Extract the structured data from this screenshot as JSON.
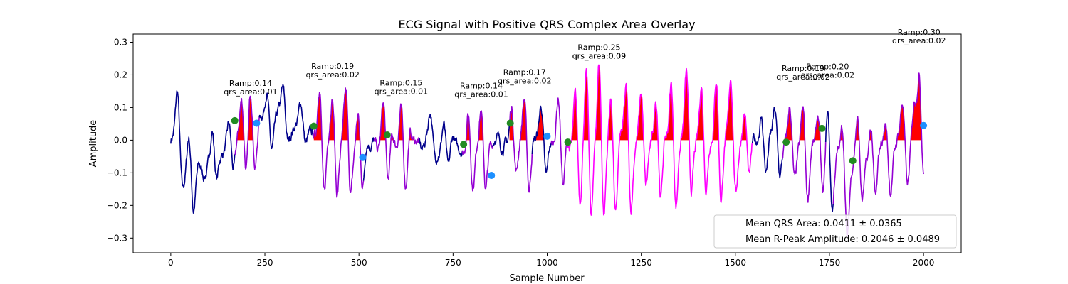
{
  "chart_data": {
    "type": "line",
    "title": "ECG Signal with Positive QRS Complex Area Overlay",
    "xlabel": "Sample Number",
    "ylabel": "Amplitude",
    "xlim": [
      -100,
      2100
    ],
    "ylim": [
      -0.345,
      0.325
    ],
    "xticks": [
      0,
      250,
      500,
      750,
      1000,
      1250,
      1500,
      1750,
      2000
    ],
    "yticks": [
      -0.3,
      -0.2,
      -0.1,
      0.0,
      0.1,
      0.2,
      0.3
    ],
    "xtick_labels": [
      "0",
      "250",
      "500",
      "750",
      "1000",
      "1250",
      "1500",
      "1750",
      "2000"
    ],
    "ytick_labels": [
      "−0.3",
      "−0.2",
      "−0.1",
      "0.0",
      "0.1",
      "0.2",
      "0.3"
    ],
    "grid": false,
    "colors": {
      "normal": "#00008b",
      "medium": "#9400d3",
      "high": "#ff00ff",
      "area_fill": "#ff0000",
      "onset_marker": "#228b22",
      "offset_marker": "#1e90ff"
    },
    "segments": [
      {
        "range": [
          0,
          170
        ],
        "color": "normal"
      },
      {
        "range": [
          170,
          235
        ],
        "color": "medium"
      },
      {
        "range": [
          235,
          378
        ],
        "color": "normal"
      },
      {
        "range": [
          378,
          512
        ],
        "color": "medium"
      },
      {
        "range": [
          512,
          540
        ],
        "color": "normal"
      },
      {
        "range": [
          540,
          660
        ],
        "color": "medium"
      },
      {
        "range": [
          660,
          775
        ],
        "color": "normal"
      },
      {
        "range": [
          775,
          855
        ],
        "color": "medium"
      },
      {
        "range": [
          855,
          900
        ],
        "color": "normal"
      },
      {
        "range": [
          900,
          960
        ],
        "color": "medium"
      },
      {
        "range": [
          960,
          1010
        ],
        "color": "normal"
      },
      {
        "range": [
          1010,
          1055
        ],
        "color": "medium"
      },
      {
        "range": [
          1055,
          1545
        ],
        "color": "high"
      },
      {
        "range": [
          1545,
          1625
        ],
        "color": "normal"
      },
      {
        "range": [
          1625,
          1740
        ],
        "color": "medium"
      },
      {
        "range": [
          1740,
          1760
        ],
        "color": "normal"
      },
      {
        "range": [
          1760,
          2000
        ],
        "color": "medium"
      }
    ],
    "beats": [
      {
        "x": 18,
        "a": 0.18,
        "w": 5,
        "s": 0.1
      },
      {
        "x": 48,
        "a": 0.12,
        "w": 5,
        "s": 0.1
      },
      {
        "x": 110,
        "a": 0.12,
        "w": 5,
        "s": 0.09
      },
      {
        "x": 155,
        "a": 0.1,
        "w": 5,
        "s": 0.09
      },
      {
        "x": 188,
        "a": 0.09,
        "w": 5,
        "s": 0.12
      },
      {
        "x": 212,
        "a": 0.13,
        "w": 5,
        "s": 0.12
      },
      {
        "x": 255,
        "a": 0.1,
        "w": 5,
        "s": 0.08
      },
      {
        "x": 298,
        "a": 0.08,
        "w": 5,
        "s": 0.08
      },
      {
        "x": 345,
        "a": 0.07,
        "w": 5,
        "s": 0.07
      },
      {
        "x": 395,
        "a": 0.17,
        "w": 5,
        "s": 0.2
      },
      {
        "x": 430,
        "a": 0.15,
        "w": 5,
        "s": 0.15
      },
      {
        "x": 465,
        "a": 0.15,
        "w": 5,
        "s": 0.15
      },
      {
        "x": 498,
        "a": 0.12,
        "w": 5,
        "s": 0.12
      },
      {
        "x": 565,
        "a": 0.11,
        "w": 5,
        "s": 0.14
      },
      {
        "x": 612,
        "a": 0.11,
        "w": 5,
        "s": 0.14
      },
      {
        "x": 690,
        "a": 0.09,
        "w": 5,
        "s": 0.07
      },
      {
        "x": 725,
        "a": 0.07,
        "w": 5,
        "s": 0.07
      },
      {
        "x": 790,
        "a": 0.12,
        "w": 5,
        "s": 0.13
      },
      {
        "x": 825,
        "a": 0.13,
        "w": 5,
        "s": 0.12
      },
      {
        "x": 905,
        "a": 0.11,
        "w": 5,
        "s": 0.12
      },
      {
        "x": 940,
        "a": 0.14,
        "w": 5,
        "s": 0.14
      },
      {
        "x": 985,
        "a": 0.09,
        "w": 5,
        "s": 0.1
      },
      {
        "x": 1030,
        "a": 0.11,
        "w": 5,
        "s": 0.14
      },
      {
        "x": 1075,
        "a": 0.13,
        "w": 5,
        "s": 0.2
      },
      {
        "x": 1105,
        "a": 0.21,
        "w": 5,
        "s": 0.22
      },
      {
        "x": 1138,
        "a": 0.24,
        "w": 5,
        "s": 0.25
      },
      {
        "x": 1170,
        "a": 0.14,
        "w": 5,
        "s": 0.22
      },
      {
        "x": 1210,
        "a": 0.15,
        "w": 5,
        "s": 0.2
      },
      {
        "x": 1250,
        "a": 0.15,
        "w": 5,
        "s": 0.18
      },
      {
        "x": 1290,
        "a": 0.14,
        "w": 5,
        "s": 0.18
      },
      {
        "x": 1330,
        "a": 0.17,
        "w": 5,
        "s": 0.18
      },
      {
        "x": 1370,
        "a": 0.2,
        "w": 5,
        "s": 0.17
      },
      {
        "x": 1410,
        "a": 0.19,
        "w": 5,
        "s": 0.18
      },
      {
        "x": 1450,
        "a": 0.2,
        "w": 5,
        "s": 0.17
      },
      {
        "x": 1488,
        "a": 0.18,
        "w": 5,
        "s": 0.16
      },
      {
        "x": 1525,
        "a": 0.1,
        "w": 5,
        "s": 0.14
      },
      {
        "x": 1570,
        "a": 0.09,
        "w": 5,
        "s": 0.1
      },
      {
        "x": 1605,
        "a": 0.08,
        "w": 5,
        "s": 0.09
      },
      {
        "x": 1645,
        "a": 0.12,
        "w": 5,
        "s": 0.14
      },
      {
        "x": 1680,
        "a": 0.13,
        "w": 5,
        "s": 0.14
      },
      {
        "x": 1720,
        "a": 0.11,
        "w": 5,
        "s": 0.12
      },
      {
        "x": 1745,
        "a": 0.16,
        "w": 5,
        "s": 0.16
      },
      {
        "x": 1785,
        "a": 0.13,
        "w": 5,
        "s": 0.22
      },
      {
        "x": 1825,
        "a": 0.12,
        "w": 5,
        "s": 0.13
      },
      {
        "x": 1860,
        "a": 0.1,
        "w": 5,
        "s": 0.15
      },
      {
        "x": 1900,
        "a": 0.1,
        "w": 5,
        "s": 0.13
      },
      {
        "x": 1945,
        "a": 0.12,
        "w": 5,
        "s": 0.15
      },
      {
        "x": 1975,
        "a": 0.11,
        "w": 5,
        "s": 0.12
      },
      {
        "x": 1988,
        "a": 0.29,
        "w": 5,
        "s": 0.14
      }
    ],
    "baseline_wander": [
      {
        "x": 0,
        "y": 0.0
      },
      {
        "x": 60,
        "y": -0.12
      },
      {
        "x": 100,
        "y": -0.08
      },
      {
        "x": 150,
        "y": -0.03
      },
      {
        "x": 200,
        "y": 0.03
      },
      {
        "x": 250,
        "y": 0.06
      },
      {
        "x": 300,
        "y": 0.07
      },
      {
        "x": 400,
        "y": 0.01
      },
      {
        "x": 500,
        "y": -0.03
      },
      {
        "x": 560,
        "y": 0.0
      },
      {
        "x": 650,
        "y": 0.0
      },
      {
        "x": 720,
        "y": -0.01
      },
      {
        "x": 800,
        "y": -0.03
      },
      {
        "x": 900,
        "y": 0.0
      },
      {
        "x": 1000,
        "y": 0.0
      },
      {
        "x": 1100,
        "y": 0.0
      },
      {
        "x": 1600,
        "y": 0.0
      },
      {
        "x": 1700,
        "y": -0.03
      },
      {
        "x": 1800,
        "y": -0.08
      },
      {
        "x": 1900,
        "y": -0.03
      },
      {
        "x": 2000,
        "y": 0.03
      }
    ],
    "qrs_areas": [
      {
        "start": 170,
        "end": 230
      },
      {
        "start": 380,
        "end": 510
      },
      {
        "start": 540,
        "end": 660
      },
      {
        "start": 775,
        "end": 855
      },
      {
        "start": 900,
        "end": 1000
      },
      {
        "start": 1055,
        "end": 1545
      },
      {
        "start": 1625,
        "end": 1740
      },
      {
        "start": 1760,
        "end": 2000
      }
    ],
    "onset_markers": [
      {
        "x": 170,
        "y": 0.06
      },
      {
        "x": 380,
        "y": 0.043
      },
      {
        "x": 575,
        "y": 0.016
      },
      {
        "x": 778,
        "y": -0.013
      },
      {
        "x": 902,
        "y": 0.052
      },
      {
        "x": 1055,
        "y": -0.006
      },
      {
        "x": 1635,
        "y": -0.006
      },
      {
        "x": 1730,
        "y": 0.036
      },
      {
        "x": 1812,
        "y": -0.063
      }
    ],
    "offset_markers": [
      {
        "x": 228,
        "y": 0.052
      },
      {
        "x": 510,
        "y": -0.053
      },
      {
        "x": 852,
        "y": -0.108
      },
      {
        "x": 1000,
        "y": 0.012
      },
      {
        "x": 2000,
        "y": 0.045
      }
    ],
    "annotations": [
      {
        "x": 212,
        "y": 0.131,
        "ramp": "Ramp:0.14",
        "area": "qrs_area:0.01"
      },
      {
        "x": 430,
        "y": 0.184,
        "ramp": "Ramp:0.19",
        "area": "qrs_area:0.02"
      },
      {
        "x": 612,
        "y": 0.132,
        "ramp": "Ramp:0.15",
        "area": "qrs_area:0.01"
      },
      {
        "x": 825,
        "y": 0.124,
        "ramp": "Ramp:0.14",
        "area": "qrs_area:0.01"
      },
      {
        "x": 940,
        "y": 0.165,
        "ramp": "Ramp:0.17",
        "area": "qrs_area:0.02"
      },
      {
        "x": 1138,
        "y": 0.241,
        "ramp": "Ramp:0.25",
        "area": "qrs_area:0.09"
      },
      {
        "x": 1138,
        "y": 0.241,
        "ramp": "Ramp:0.25",
        "area": "qrs_area:0.09"
      },
      {
        "x": 1680,
        "y": 0.177,
        "ramp": "Ramp:0.19",
        "area": "qrs_area:0.02"
      },
      {
        "x": 1745,
        "y": 0.182,
        "ramp": "Ramp:0.20",
        "area": "qrs_area:0.02"
      },
      {
        "x": 1988,
        "y": 0.288,
        "ramp": "Ramp:0.30",
        "area": "qrs_area:0.02"
      }
    ],
    "legend": {
      "placement": "lower right",
      "entries": [
        "Mean QRS Area: 0.0411 ± 0.0365",
        "Mean R-Peak Amplitude: 0.2046 ± 0.0489"
      ]
    }
  }
}
